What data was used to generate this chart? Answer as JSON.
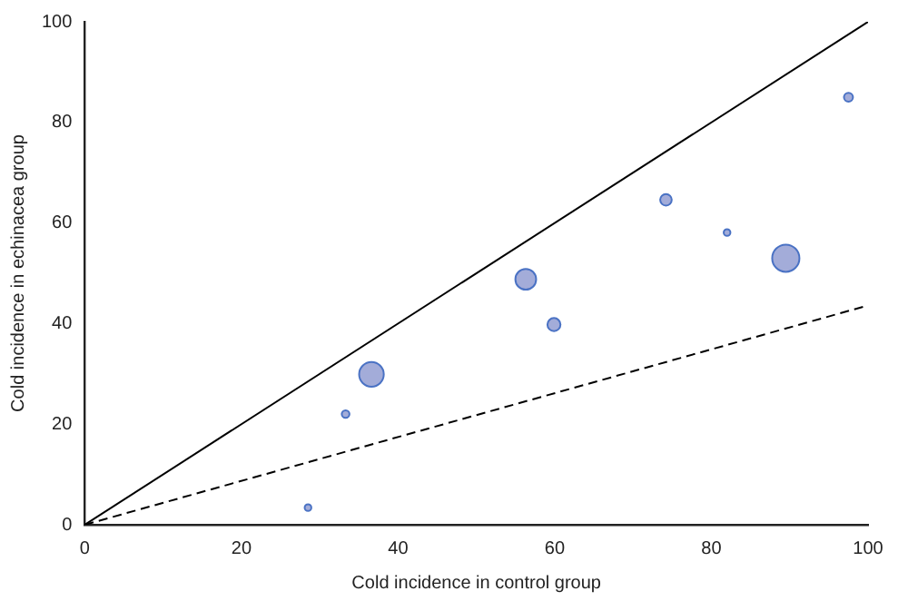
{
  "chart_data": {
    "type": "bubble",
    "xlabel": "Cold incidence in control group",
    "ylabel": "Cold incidence in echinacea group",
    "series": [
      {
        "type": "bubble",
        "color": "#a3acd9",
        "x": [
          28.5,
          33.3,
          36.6,
          56.3,
          59.9,
          74.2,
          82.0,
          89.5,
          97.5
        ],
        "values": [
          3.4,
          22.0,
          29.9,
          48.8,
          39.8,
          64.6,
          58.1,
          53.0,
          85.0
        ],
        "sizes": [
          0.06,
          0.08,
          0.82,
          0.58,
          0.23,
          0.18,
          0.06,
          1,
          0.11
        ]
      },
      {
        "type": "line",
        "color": "#000000",
        "line_style": "solid",
        "marker": "none",
        "x": [
          0,
          100
        ],
        "values": [
          0,
          100
        ]
      },
      {
        "type": "line",
        "color": "#000000",
        "line_style": "dashed",
        "marker": "none",
        "x": [
          0,
          100
        ],
        "values": [
          0,
          43.6
        ]
      }
    ],
    "xlim": [
      0,
      100
    ],
    "xticks": [
      0,
      20,
      40,
      60,
      80,
      100
    ],
    "ylim": [
      0,
      100
    ],
    "yticks": [
      0,
      20,
      40,
      60,
      80,
      100
    ],
    "grid": false,
    "legend": false
  }
}
